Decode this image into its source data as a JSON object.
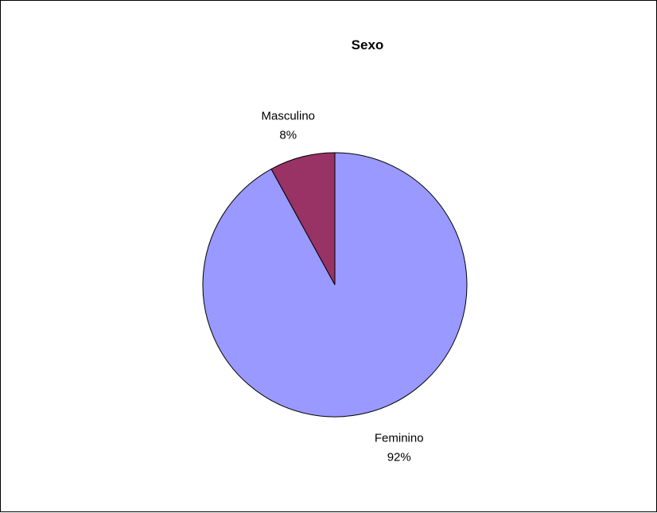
{
  "chart_data": {
    "type": "pie",
    "title": "Sexo",
    "categories": [
      "Feminino",
      "Masculino"
    ],
    "values": [
      92,
      8
    ],
    "value_labels": [
      "92%",
      "8%"
    ],
    "colors": [
      "#9999FF",
      "#993366"
    ],
    "legend": "none",
    "label_position": "outside"
  }
}
